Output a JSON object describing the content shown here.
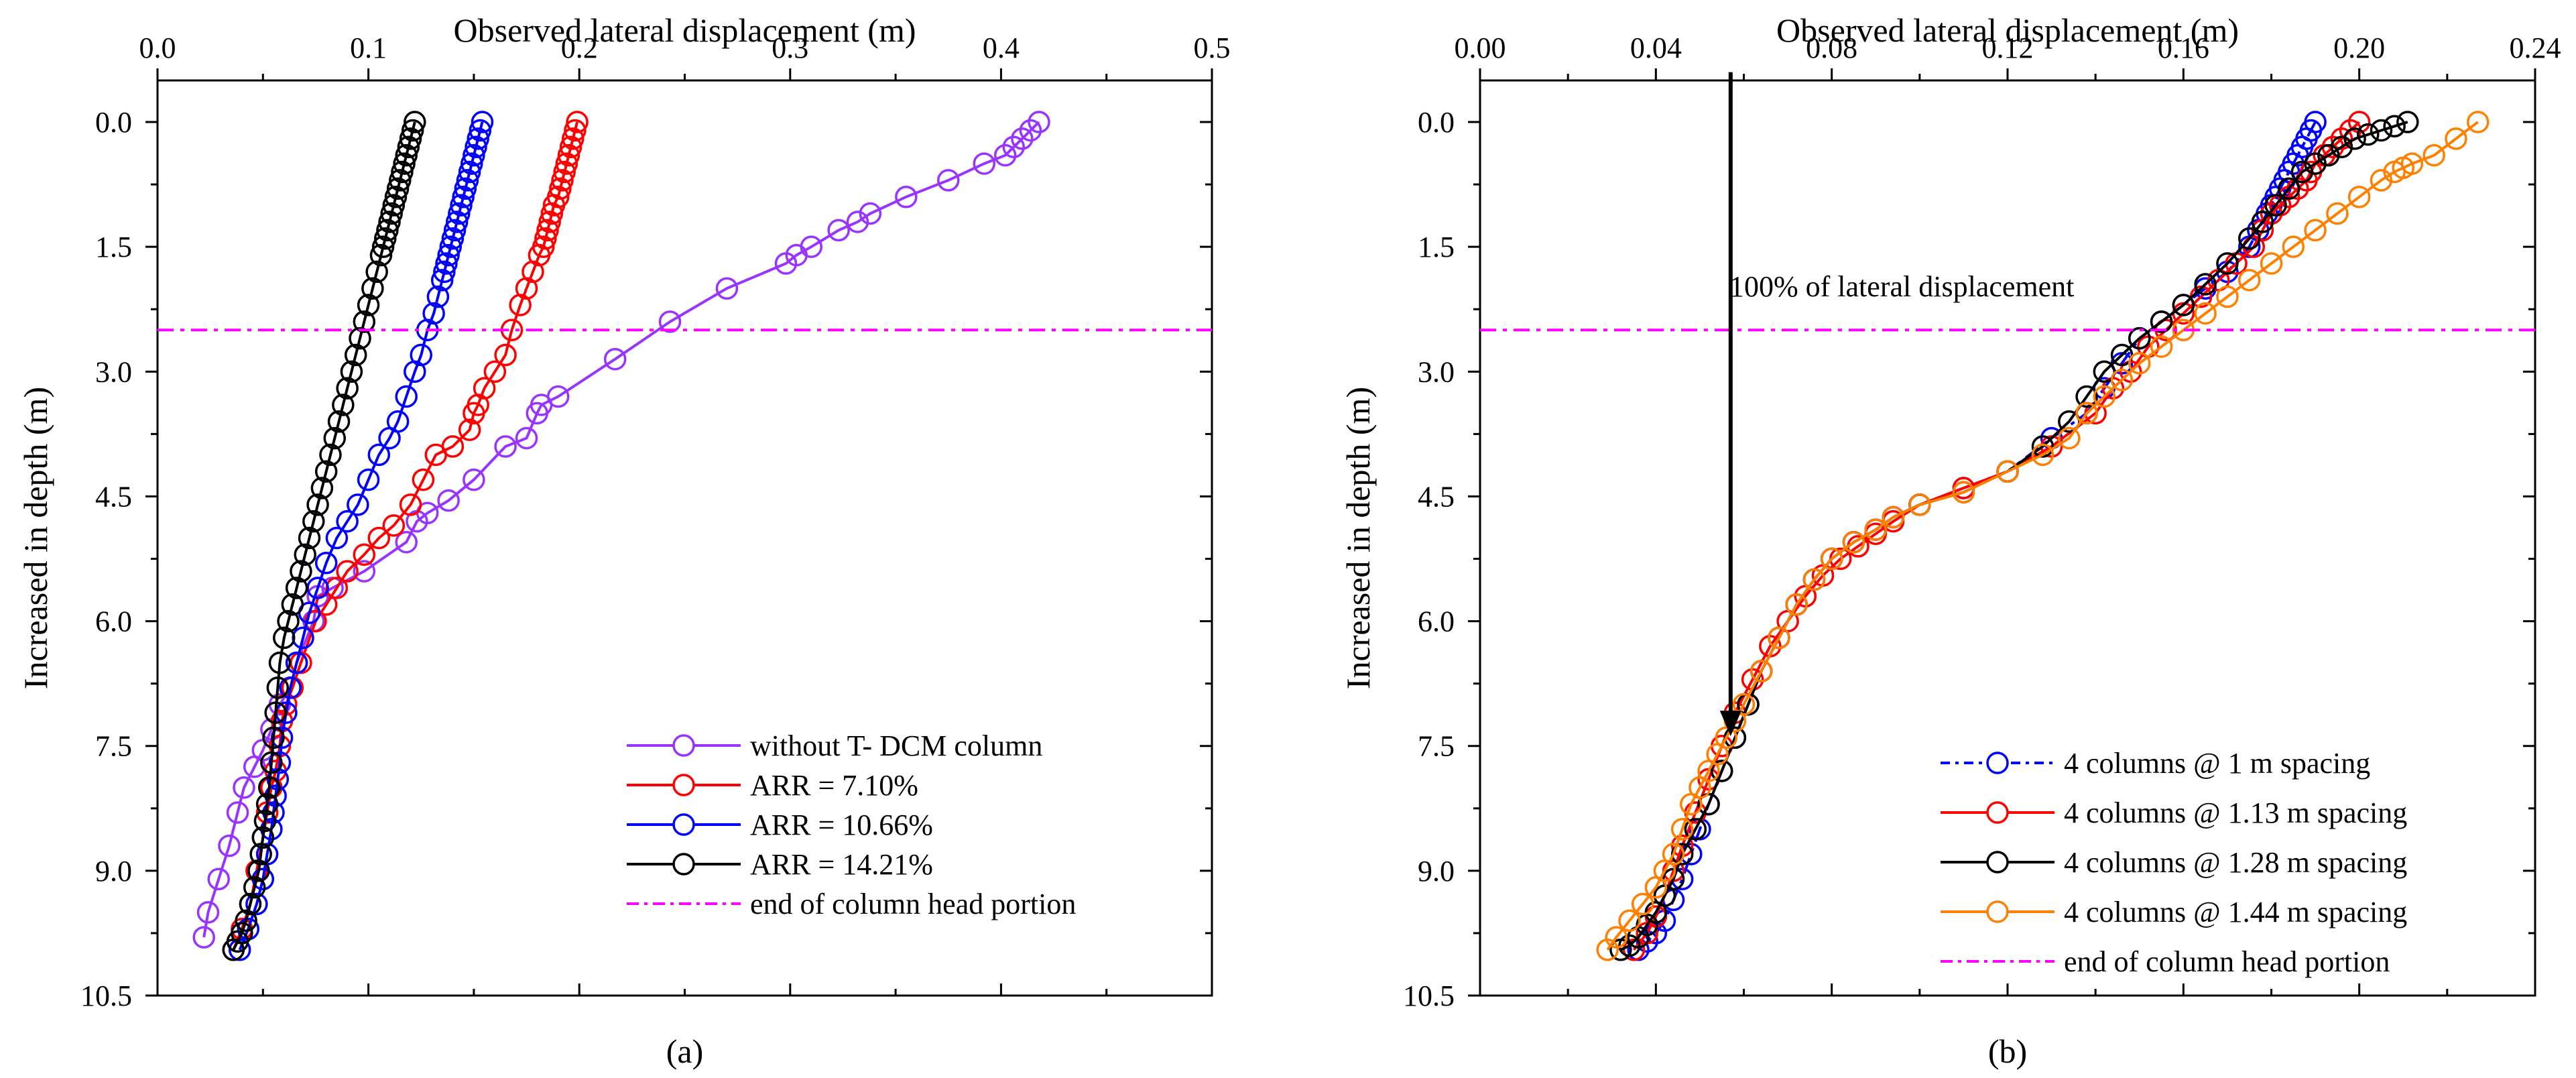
{
  "chart_data": [
    {
      "type": "line",
      "caption": "(a)",
      "xlabel": "Observed lateral displacement (m)",
      "ylabel": "Increased in depth (m)",
      "xlim": [
        0.0,
        0.5
      ],
      "ylim": [
        10.5,
        -0.5
      ],
      "xticks": [
        0.0,
        0.1,
        0.2,
        0.3,
        0.4,
        0.5
      ],
      "xtick_labels": [
        "0.0",
        "0.1",
        "0.2",
        "0.3",
        "0.4",
        "0.5"
      ],
      "yticks": [
        0.0,
        1.5,
        3.0,
        4.5,
        6.0,
        7.5,
        9.0,
        10.5
      ],
      "ytick_labels": [
        "0.0",
        "1.5",
        "3.0",
        "4.5",
        "6.0",
        "7.5",
        "9.0",
        "10.5"
      ],
      "legend_position": "bottom-right",
      "series": [
        {
          "name": "without T- DCM column",
          "color": "#9933ff",
          "dash": "solid",
          "x": [
            0.418,
            0.414,
            0.41,
            0.406,
            0.402,
            0.392,
            0.375,
            0.355,
            0.338,
            0.332,
            0.323,
            0.31,
            0.303,
            0.298,
            0.27,
            0.243,
            0.217,
            0.19,
            0.182,
            0.18,
            0.175,
            0.165,
            0.15,
            0.138,
            0.128,
            0.123,
            0.118,
            0.098,
            0.083,
            0.076,
            0.074,
            0.066,
            0.063,
            0.058,
            0.054,
            0.05,
            0.046,
            0.041,
            0.038,
            0.034,
            0.029,
            0.024,
            0.022
          ],
          "y": [
            0.0,
            0.1,
            0.2,
            0.3,
            0.4,
            0.5,
            0.7,
            0.9,
            1.1,
            1.2,
            1.3,
            1.5,
            1.6,
            1.7,
            2.0,
            2.4,
            2.85,
            3.3,
            3.4,
            3.5,
            3.8,
            3.9,
            4.3,
            4.55,
            4.7,
            4.8,
            5.05,
            5.4,
            5.6,
            5.7,
            6.0,
            6.5,
            6.8,
            7.0,
            7.3,
            7.55,
            7.75,
            8.0,
            8.3,
            8.7,
            9.1,
            9.5,
            9.8
          ]
        },
        {
          "name": "ARR = 7.10%",
          "color": "#ff0000",
          "dash": "solid",
          "x": [
            0.199,
            0.198,
            0.197,
            0.196,
            0.195,
            0.194,
            0.193,
            0.192,
            0.191,
            0.19,
            0.188,
            0.187,
            0.186,
            0.185,
            0.184,
            0.183,
            0.181,
            0.178,
            0.175,
            0.172,
            0.168,
            0.165,
            0.16,
            0.155,
            0.152,
            0.15,
            0.148,
            0.14,
            0.132,
            0.126,
            0.12,
            0.112,
            0.105,
            0.098,
            0.09,
            0.085,
            0.08,
            0.075,
            0.068,
            0.064,
            0.061,
            0.059,
            0.058,
            0.056,
            0.054,
            0.052,
            0.05,
            0.047,
            0.044,
            0.04,
            0.036
          ],
          "y": [
            0.0,
            0.1,
            0.2,
            0.3,
            0.4,
            0.5,
            0.6,
            0.7,
            0.8,
            0.9,
            1.0,
            1.1,
            1.2,
            1.3,
            1.4,
            1.5,
            1.6,
            1.8,
            2.0,
            2.2,
            2.5,
            2.8,
            3.0,
            3.2,
            3.4,
            3.5,
            3.7,
            3.9,
            4.0,
            4.3,
            4.6,
            4.85,
            5.0,
            5.2,
            5.4,
            5.6,
            5.8,
            6.0,
            6.5,
            6.8,
            7.0,
            7.2,
            7.5,
            7.8,
            8.0,
            8.3,
            8.6,
            9.0,
            9.4,
            9.7,
            9.95
          ]
        },
        {
          "name": "ARR = 10.66%",
          "color": "#0000ff",
          "dash": "solid",
          "x": [
            0.154,
            0.153,
            0.152,
            0.151,
            0.15,
            0.149,
            0.148,
            0.147,
            0.146,
            0.145,
            0.144,
            0.143,
            0.142,
            0.141,
            0.14,
            0.139,
            0.138,
            0.137,
            0.136,
            0.135,
            0.133,
            0.131,
            0.128,
            0.125,
            0.122,
            0.118,
            0.114,
            0.11,
            0.105,
            0.1,
            0.095,
            0.09,
            0.085,
            0.08,
            0.076,
            0.072,
            0.069,
            0.066,
            0.063,
            0.061,
            0.059,
            0.058,
            0.057,
            0.056,
            0.055,
            0.054,
            0.052,
            0.05,
            0.047,
            0.043,
            0.039
          ],
          "y": [
            0.0,
            0.1,
            0.2,
            0.3,
            0.4,
            0.5,
            0.6,
            0.7,
            0.8,
            0.9,
            1.0,
            1.1,
            1.2,
            1.3,
            1.4,
            1.5,
            1.6,
            1.7,
            1.8,
            1.9,
            2.1,
            2.3,
            2.5,
            2.8,
            3.0,
            3.3,
            3.6,
            3.8,
            4.0,
            4.3,
            4.6,
            4.8,
            5.0,
            5.3,
            5.6,
            5.9,
            6.2,
            6.5,
            6.8,
            7.1,
            7.4,
            7.7,
            7.9,
            8.1,
            8.3,
            8.5,
            8.8,
            9.1,
            9.4,
            9.7,
            9.95
          ]
        },
        {
          "name": "ARR = 14.21%",
          "color": "#000000",
          "dash": "solid",
          "x": [
            0.122,
            0.121,
            0.12,
            0.119,
            0.118,
            0.117,
            0.116,
            0.115,
            0.114,
            0.113,
            0.112,
            0.111,
            0.11,
            0.109,
            0.108,
            0.107,
            0.106,
            0.104,
            0.102,
            0.1,
            0.098,
            0.096,
            0.094,
            0.092,
            0.09,
            0.088,
            0.086,
            0.084,
            0.082,
            0.08,
            0.078,
            0.076,
            0.074,
            0.072,
            0.07,
            0.068,
            0.066,
            0.064,
            0.062,
            0.06,
            0.058,
            0.057,
            0.056,
            0.055,
            0.054,
            0.053,
            0.052,
            0.051,
            0.05,
            0.049,
            0.048,
            0.046,
            0.044,
            0.042,
            0.04,
            0.038,
            0.036
          ],
          "y": [
            0.0,
            0.1,
            0.2,
            0.3,
            0.4,
            0.5,
            0.6,
            0.7,
            0.8,
            0.9,
            1.0,
            1.1,
            1.2,
            1.3,
            1.4,
            1.5,
            1.6,
            1.8,
            2.0,
            2.2,
            2.4,
            2.6,
            2.8,
            3.0,
            3.2,
            3.4,
            3.6,
            3.8,
            4.0,
            4.2,
            4.4,
            4.6,
            4.8,
            5.0,
            5.2,
            5.4,
            5.6,
            5.8,
            6.0,
            6.2,
            6.5,
            6.8,
            7.1,
            7.4,
            7.7,
            8.0,
            8.2,
            8.4,
            8.6,
            8.8,
            9.0,
            9.2,
            9.4,
            9.6,
            9.75,
            9.85,
            9.95
          ]
        },
        {
          "name": "end of column head portion",
          "color": "#ff00ff",
          "dash": "dashdot",
          "x": [
            0.0,
            0.5
          ],
          "y": [
            2.5,
            2.5
          ],
          "markers": false
        }
      ]
    },
    {
      "type": "line",
      "caption": "(b)",
      "xlabel": "Observed lateral displacement (m)",
      "ylabel": "Increased in depth (m)",
      "xlim": [
        0.0,
        0.24
      ],
      "ylim": [
        10.5,
        -0.5
      ],
      "xticks": [
        0.0,
        0.04,
        0.08,
        0.12,
        0.16,
        0.2,
        0.24
      ],
      "xtick_labels": [
        "0.00",
        "0.04",
        "0.08",
        "0.12",
        "0.16",
        "0.20",
        "0.24"
      ],
      "yticks": [
        0.0,
        1.5,
        3.0,
        4.5,
        6.0,
        7.5,
        9.0,
        10.5
      ],
      "ytick_labels": [
        "0.0",
        "1.5",
        "3.0",
        "4.5",
        "6.0",
        "7.5",
        "9.0",
        "10.5"
      ],
      "legend_position": "bottom-right",
      "annotation": {
        "text": "100% of lateral displacement",
        "x": 0.057,
        "y_start": -0.6,
        "y_end": 7.35
      },
      "series": [
        {
          "name": "4 columns @ 1 m spacing",
          "color": "#0000ff",
          "dash": "dashdot",
          "x": [
            0.19,
            0.189,
            0.188,
            0.187,
            0.186,
            0.185,
            0.184,
            0.183,
            0.182,
            0.181,
            0.18,
            0.179,
            0.177,
            0.175,
            0.17,
            0.165,
            0.16,
            0.155,
            0.15,
            0.146,
            0.142,
            0.138,
            0.13,
            0.12,
            0.11,
            0.1,
            0.094,
            0.09,
            0.085,
            0.08,
            0.076,
            0.072,
            0.068,
            0.064,
            0.061,
            0.058,
            0.055,
            0.052,
            0.05,
            0.048,
            0.046,
            0.044,
            0.042,
            0.04,
            0.038,
            0.036
          ],
          "y": [
            0.0,
            0.1,
            0.2,
            0.3,
            0.4,
            0.5,
            0.6,
            0.7,
            0.8,
            0.9,
            1.0,
            1.1,
            1.3,
            1.5,
            1.8,
            2.0,
            2.2,
            2.4,
            2.6,
            2.9,
            3.2,
            3.5,
            3.8,
            4.2,
            4.4,
            4.6,
            4.75,
            4.9,
            5.05,
            5.25,
            5.5,
            5.8,
            6.2,
            6.6,
            7.0,
            7.4,
            7.8,
            8.2,
            8.5,
            8.8,
            9.1,
            9.35,
            9.6,
            9.75,
            9.85,
            9.95
          ]
        },
        {
          "name": "4 columns @ 1.13 m spacing",
          "color": "#ff0000",
          "dash": "solid",
          "x": [
            0.2,
            0.198,
            0.196,
            0.194,
            0.192,
            0.19,
            0.189,
            0.188,
            0.186,
            0.184,
            0.182,
            0.18,
            0.178,
            0.176,
            0.172,
            0.168,
            0.164,
            0.16,
            0.156,
            0.152,
            0.148,
            0.144,
            0.14,
            0.13,
            0.12,
            0.11,
            0.1,
            0.094,
            0.09,
            0.086,
            0.082,
            0.078,
            0.074,
            0.07,
            0.066,
            0.062,
            0.058,
            0.055,
            0.052,
            0.049,
            0.046,
            0.044,
            0.042,
            0.04,
            0.038,
            0.035
          ],
          "y": [
            0.0,
            0.1,
            0.2,
            0.3,
            0.4,
            0.5,
            0.6,
            0.7,
            0.8,
            0.9,
            1.0,
            1.1,
            1.3,
            1.5,
            1.7,
            1.9,
            2.1,
            2.3,
            2.5,
            2.7,
            3.0,
            3.2,
            3.5,
            3.9,
            4.2,
            4.4,
            4.6,
            4.8,
            4.95,
            5.1,
            5.25,
            5.45,
            5.7,
            6.0,
            6.3,
            6.7,
            7.1,
            7.5,
            7.9,
            8.3,
            8.7,
            9.0,
            9.3,
            9.55,
            9.75,
            9.95
          ]
        },
        {
          "name": "4 columns @ 1.28 m spacing",
          "color": "#000000",
          "dash": "solid",
          "x": [
            0.211,
            0.208,
            0.205,
            0.202,
            0.199,
            0.196,
            0.193,
            0.19,
            0.187,
            0.184,
            0.181,
            0.178,
            0.175,
            0.17,
            0.165,
            0.16,
            0.155,
            0.15,
            0.146,
            0.142,
            0.138,
            0.134,
            0.128,
            0.12,
            0.11,
            0.1,
            0.094,
            0.09,
            0.085,
            0.08,
            0.076,
            0.072,
            0.068,
            0.064,
            0.061,
            0.058,
            0.055,
            0.052,
            0.049,
            0.046,
            0.044,
            0.042,
            0.04,
            0.038,
            0.036,
            0.034,
            0.032
          ],
          "y": [
            0.0,
            0.05,
            0.1,
            0.15,
            0.2,
            0.3,
            0.4,
            0.5,
            0.6,
            0.8,
            1.0,
            1.2,
            1.4,
            1.7,
            1.95,
            2.2,
            2.4,
            2.6,
            2.8,
            3.0,
            3.3,
            3.6,
            3.9,
            4.2,
            4.45,
            4.6,
            4.75,
            4.9,
            5.05,
            5.25,
            5.5,
            5.8,
            6.2,
            6.6,
            7.0,
            7.4,
            7.8,
            8.2,
            8.5,
            8.8,
            9.1,
            9.3,
            9.5,
            9.65,
            9.8,
            9.9,
            9.95
          ]
        },
        {
          "name": "4 columns @ 1.44 m spacing",
          "color": "#ff8000",
          "dash": "solid",
          "x": [
            0.227,
            0.222,
            0.217,
            0.212,
            0.21,
            0.208,
            0.205,
            0.2,
            0.195,
            0.19,
            0.185,
            0.18,
            0.175,
            0.17,
            0.165,
            0.16,
            0.155,
            0.15,
            0.146,
            0.142,
            0.138,
            0.134,
            0.128,
            0.12,
            0.11,
            0.1,
            0.094,
            0.09,
            0.085,
            0.08,
            0.076,
            0.072,
            0.068,
            0.064,
            0.06,
            0.058,
            0.056,
            0.054,
            0.052,
            0.05,
            0.048,
            0.046,
            0.044,
            0.042,
            0.04,
            0.037,
            0.034,
            0.031,
            0.029
          ],
          "y": [
            0.0,
            0.2,
            0.4,
            0.5,
            0.55,
            0.6,
            0.7,
            0.9,
            1.1,
            1.3,
            1.5,
            1.7,
            1.9,
            2.1,
            2.3,
            2.5,
            2.7,
            2.9,
            3.1,
            3.3,
            3.5,
            3.8,
            4.0,
            4.2,
            4.45,
            4.6,
            4.75,
            4.9,
            5.05,
            5.25,
            5.5,
            5.8,
            6.2,
            6.6,
            7.0,
            7.2,
            7.4,
            7.6,
            7.8,
            8.0,
            8.2,
            8.5,
            8.8,
            9.0,
            9.2,
            9.4,
            9.6,
            9.8,
            9.95
          ]
        },
        {
          "name": "end of column head portion",
          "color": "#ff00ff",
          "dash": "dashdot",
          "x": [
            0.0,
            0.24
          ],
          "y": [
            2.5,
            2.5
          ],
          "markers": false
        }
      ]
    }
  ]
}
